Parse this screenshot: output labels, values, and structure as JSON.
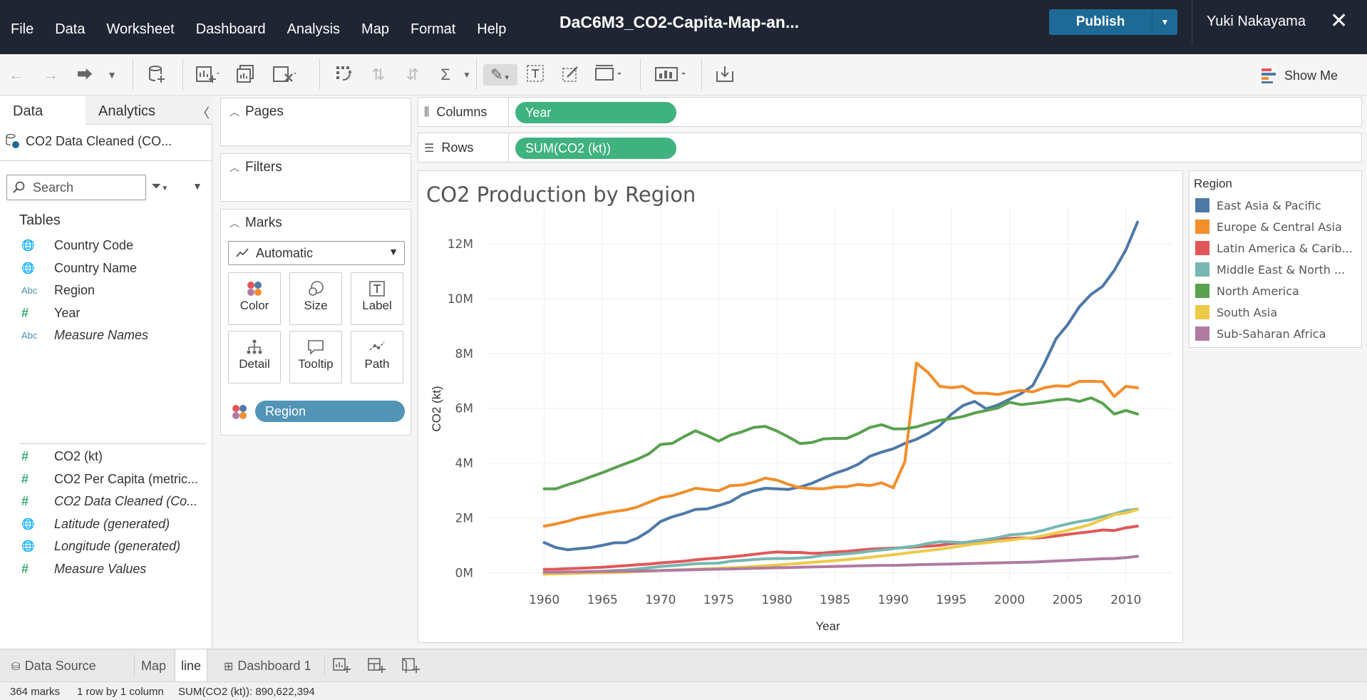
{
  "menubar": {
    "items": [
      "File",
      "Data",
      "Worksheet",
      "Dashboard",
      "Analysis",
      "Map",
      "Format",
      "Help"
    ],
    "doc_title": "DaC6M3_CO2-Capita-Map-an...",
    "publish_label": "Publish",
    "user_name": "Yuki Nakayama"
  },
  "toolbar": {
    "show_me_label": "Show Me"
  },
  "datapane": {
    "tab_data": "Data",
    "tab_analytics": "Analytics",
    "datasource_name": "CO2 Data Cleaned (CO...",
    "search_placeholder": "Search",
    "tables_heading": "Tables",
    "dimensions": [
      {
        "label": "Country Code",
        "type": "geo"
      },
      {
        "label": "Country Name",
        "type": "geo"
      },
      {
        "label": "Region",
        "type": "abc"
      },
      {
        "label": "Year",
        "type": "number"
      },
      {
        "label": "Measure Names",
        "type": "abc"
      }
    ],
    "measures": [
      {
        "label": "CO2 (kt)",
        "type": "number"
      },
      {
        "label": "CO2 Per Capita (metric...",
        "type": "number"
      },
      {
        "label": "CO2 Data Cleaned (Co...",
        "type": "number"
      },
      {
        "label": "Latitude (generated)",
        "type": "geo"
      },
      {
        "label": "Longitude (generated)",
        "type": "geo"
      },
      {
        "label": "Measure Values",
        "type": "number"
      }
    ]
  },
  "cards": {
    "pages_title": "Pages",
    "filters_title": "Filters",
    "marks_title": "Marks",
    "marks_type": "Automatic",
    "mark_buttons": [
      "Color",
      "Size",
      "Label",
      "Detail",
      "Tooltip",
      "Path"
    ],
    "color_pill": "Region"
  },
  "shelves": {
    "columns_label": "Columns",
    "columns_pill": "Year",
    "rows_label": "Rows",
    "rows_pill": "SUM(CO2 (kt))"
  },
  "legend": {
    "title": "Region",
    "items": [
      {
        "label": "East Asia & Pacific",
        "color": "#4e79a7"
      },
      {
        "label": "Europe & Central Asia",
        "color": "#f28e2b"
      },
      {
        "label": "Latin America & Carib...",
        "color": "#e15759"
      },
      {
        "label": "Middle East & North ...",
        "color": "#76b7b2"
      },
      {
        "label": "North America",
        "color": "#59a14f"
      },
      {
        "label": "South Asia",
        "color": "#edc948"
      },
      {
        "label": "Sub-Saharan Africa",
        "color": "#b07aa1"
      }
    ]
  },
  "sheet_tabs": {
    "data_source": "Data Source",
    "sheets": [
      "Map",
      "line",
      "Dashboard 1"
    ],
    "active": "line"
  },
  "statusbar": {
    "marks": "364 marks",
    "dims": "1 row by 1 column",
    "sum": "SUM(CO2 (kt)): 890,622,394"
  },
  "chart_data": {
    "type": "line",
    "title": "CO2 Production by Region",
    "xlabel": "Year",
    "ylabel": "CO2 (kt)",
    "xlim": [
      1955,
      2014
    ],
    "ylim": [
      -300000,
      13300000
    ],
    "x_ticks": [
      1960,
      1965,
      1970,
      1975,
      1980,
      1985,
      1990,
      1995,
      2000,
      2005,
      2010
    ],
    "y_ticks": [
      {
        "value": 0,
        "label": "0M"
      },
      {
        "value": 2000000,
        "label": "2M"
      },
      {
        "value": 4000000,
        "label": "4M"
      },
      {
        "value": 6000000,
        "label": "6M"
      },
      {
        "value": 8000000,
        "label": "8M"
      },
      {
        "value": 10000000,
        "label": "10M"
      },
      {
        "value": 12000000,
        "label": "12M"
      }
    ],
    "grid": true,
    "legend_position": "right",
    "x": [
      1960,
      1961,
      1962,
      1963,
      1964,
      1965,
      1966,
      1967,
      1968,
      1969,
      1970,
      1971,
      1972,
      1973,
      1974,
      1975,
      1976,
      1977,
      1978,
      1979,
      1980,
      1981,
      1982,
      1983,
      1984,
      1985,
      1986,
      1987,
      1988,
      1989,
      1990,
      1991,
      1992,
      1993,
      1994,
      1995,
      1996,
      1997,
      1998,
      1999,
      2000,
      2001,
      2002,
      2003,
      2004,
      2005,
      2006,
      2007,
      2008,
      2009,
      2010,
      2011
    ],
    "series": [
      {
        "name": "East Asia & Pacific",
        "color": "#4e79a7",
        "values": [
          1100000,
          920000,
          840000,
          880000,
          920000,
          1000000,
          1090000,
          1100000,
          1260000,
          1520000,
          1870000,
          2040000,
          2160000,
          2310000,
          2330000,
          2450000,
          2590000,
          2840000,
          2990000,
          3080000,
          3060000,
          3040000,
          3130000,
          3260000,
          3450000,
          3630000,
          3770000,
          3960000,
          4250000,
          4400000,
          4520000,
          4720000,
          4870000,
          5080000,
          5370000,
          5780000,
          6100000,
          6250000,
          5980000,
          6120000,
          6330000,
          6540000,
          6830000,
          7640000,
          8540000,
          9050000,
          9700000,
          10150000,
          10450000,
          11030000,
          11780000,
          12790000
        ]
      },
      {
        "name": "Europe & Central Asia",
        "color": "#f28e2b",
        "values": [
          1700000,
          1780000,
          1880000,
          2000000,
          2080000,
          2160000,
          2230000,
          2290000,
          2400000,
          2570000,
          2740000,
          2810000,
          2940000,
          3080000,
          3030000,
          2990000,
          3180000,
          3200000,
          3300000,
          3450000,
          3380000,
          3220000,
          3100000,
          3070000,
          3060000,
          3130000,
          3140000,
          3220000,
          3180000,
          3280000,
          3100000,
          4050000,
          7650000,
          7300000,
          6800000,
          6750000,
          6800000,
          6550000,
          6550000,
          6500000,
          6600000,
          6650000,
          6600000,
          6750000,
          6820000,
          6800000,
          6980000,
          6980000,
          6970000,
          6430000,
          6800000,
          6750000
        ]
      },
      {
        "name": "Latin America & Caribbean",
        "color": "#e15759",
        "values": [
          120000,
          130000,
          150000,
          160000,
          180000,
          200000,
          230000,
          260000,
          290000,
          320000,
          360000,
          390000,
          420000,
          470000,
          510000,
          540000,
          580000,
          620000,
          670000,
          720000,
          760000,
          740000,
          740000,
          710000,
          720000,
          760000,
          780000,
          820000,
          860000,
          880000,
          900000,
          920000,
          940000,
          970000,
          1000000,
          1060000,
          1100000,
          1140000,
          1200000,
          1230000,
          1250000,
          1270000,
          1260000,
          1290000,
          1340000,
          1400000,
          1450000,
          1500000,
          1560000,
          1540000,
          1640000,
          1700000
        ]
      },
      {
        "name": "Middle East & North Africa",
        "color": "#76b7b2",
        "values": [
          -50000,
          -30000,
          -10000,
          10000,
          30000,
          60000,
          80000,
          100000,
          140000,
          180000,
          230000,
          260000,
          290000,
          330000,
          340000,
          350000,
          420000,
          450000,
          480000,
          510000,
          520000,
          520000,
          540000,
          570000,
          640000,
          660000,
          690000,
          730000,
          790000,
          830000,
          880000,
          930000,
          980000,
          1070000,
          1130000,
          1120000,
          1100000,
          1160000,
          1210000,
          1280000,
          1380000,
          1410000,
          1460000,
          1560000,
          1680000,
          1780000,
          1870000,
          1930000,
          2050000,
          2150000,
          2270000,
          2320000
        ]
      },
      {
        "name": "North America",
        "color": "#59a14f",
        "values": [
          3060000,
          3060000,
          3210000,
          3340000,
          3500000,
          3650000,
          3820000,
          3980000,
          4140000,
          4340000,
          4680000,
          4720000,
          4960000,
          5180000,
          5000000,
          4800000,
          5020000,
          5140000,
          5300000,
          5340000,
          5170000,
          4950000,
          4710000,
          4750000,
          4880000,
          4900000,
          4900000,
          5080000,
          5300000,
          5400000,
          5250000,
          5250000,
          5320000,
          5450000,
          5560000,
          5620000,
          5700000,
          5830000,
          5920000,
          6010000,
          6220000,
          6130000,
          6180000,
          6230000,
          6300000,
          6340000,
          6250000,
          6380000,
          6180000,
          5790000,
          5920000,
          5790000
        ]
      },
      {
        "name": "South Asia",
        "color": "#edc948",
        "values": [
          -50000,
          -40000,
          -30000,
          -20000,
          -10000,
          0,
          10000,
          20000,
          40000,
          60000,
          80000,
          100000,
          110000,
          130000,
          150000,
          160000,
          180000,
          200000,
          230000,
          250000,
          280000,
          310000,
          340000,
          380000,
          410000,
          440000,
          480000,
          520000,
          560000,
          610000,
          660000,
          710000,
          760000,
          810000,
          860000,
          920000,
          990000,
          1050000,
          1090000,
          1150000,
          1190000,
          1240000,
          1280000,
          1360000,
          1450000,
          1550000,
          1650000,
          1770000,
          1940000,
          2120000,
          2180000,
          2300000
        ]
      },
      {
        "name": "Sub-Saharan Africa",
        "color": "#b07aa1",
        "values": [
          20000,
          20000,
          30000,
          30000,
          40000,
          40000,
          50000,
          60000,
          60000,
          70000,
          80000,
          90000,
          100000,
          110000,
          120000,
          130000,
          140000,
          150000,
          160000,
          170000,
          180000,
          190000,
          200000,
          210000,
          220000,
          230000,
          240000,
          250000,
          260000,
          270000,
          270000,
          280000,
          290000,
          300000,
          310000,
          320000,
          330000,
          340000,
          350000,
          360000,
          370000,
          380000,
          390000,
          410000,
          430000,
          450000,
          470000,
          490000,
          510000,
          520000,
          550000,
          600000
        ]
      }
    ]
  }
}
